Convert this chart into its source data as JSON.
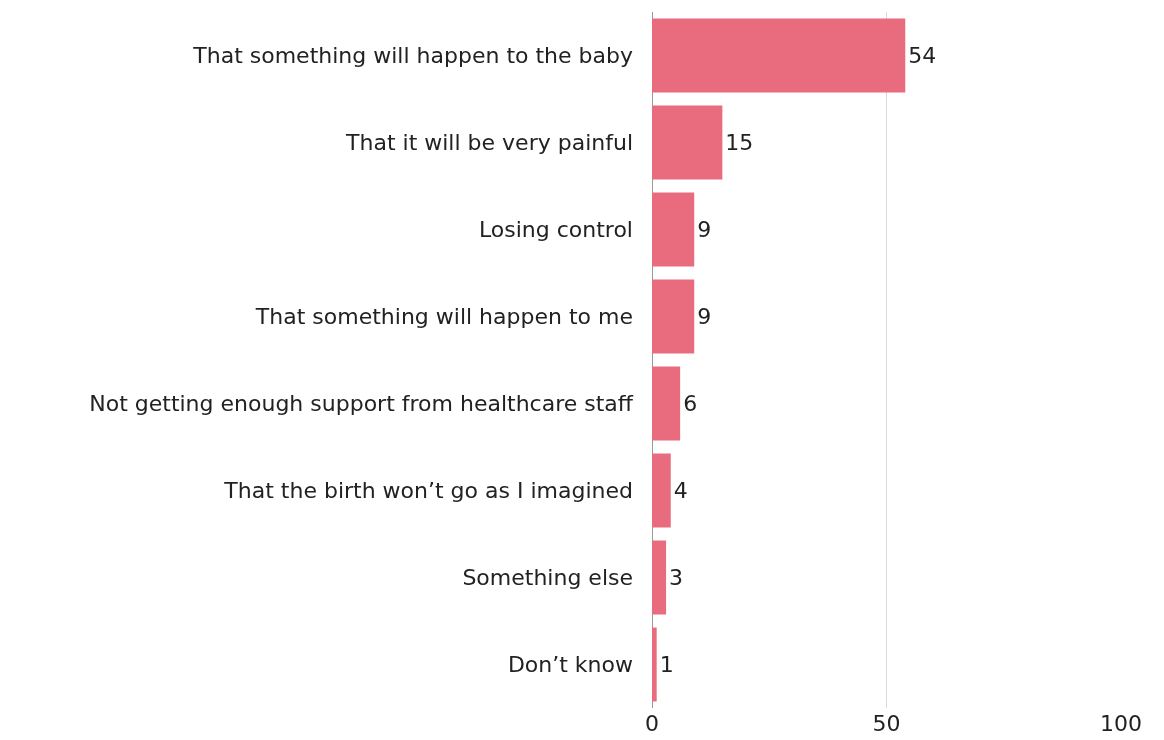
{
  "chart_data": {
    "type": "bar",
    "orientation": "horizontal",
    "categories": [
      "That something will happen to the baby",
      "That it will be very painful",
      "Losing control",
      "That something will happen to me",
      "Not getting enough support from healthcare staff",
      "That the birth won’t go as I imagined",
      "Something else",
      "Don’t know"
    ],
    "values": [
      54,
      15,
      9,
      9,
      6,
      4,
      3,
      1
    ],
    "color": "#e96c7e",
    "xlim": [
      0,
      100
    ],
    "xticks": [
      0,
      50,
      100
    ],
    "grid": "x",
    "data_labels": true
  }
}
